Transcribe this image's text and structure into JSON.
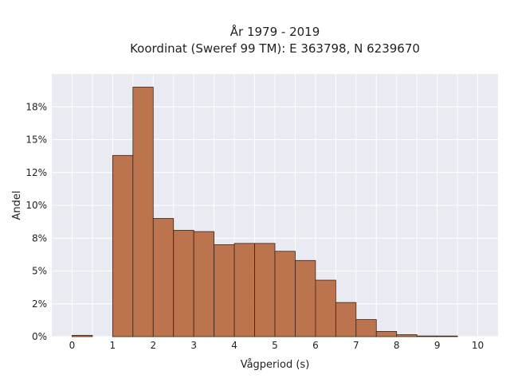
{
  "chart_data": {
    "type": "bar",
    "title_line1": "År 1979 - 2019",
    "title_line2": "Koordinat (Sweref 99 TM): E 363798, N 6239670",
    "xlabel": "Vågperiod (s)",
    "ylabel": "Andel",
    "xlim": [
      -0.5,
      10.5
    ],
    "ylim": [
      0,
      0.2
    ],
    "x_ticks": [
      0,
      1,
      2,
      3,
      4,
      5,
      6,
      7,
      8,
      9,
      10
    ],
    "y_ticks": [
      {
        "value": 0.0,
        "label": "0%"
      },
      {
        "value": 0.025,
        "label": "2%"
      },
      {
        "value": 0.05,
        "label": "5%"
      },
      {
        "value": 0.075,
        "label": "8%"
      },
      {
        "value": 0.1,
        "label": "10%"
      },
      {
        "value": 0.125,
        "label": "12%"
      },
      {
        "value": 0.15,
        "label": "15%"
      },
      {
        "value": 0.175,
        "label": "18%"
      }
    ],
    "bin_width": 0.5,
    "bin_starts": [
      0.0,
      0.5,
      1.0,
      1.5,
      2.0,
      2.5,
      3.0,
      3.5,
      4.0,
      4.5,
      5.0,
      5.5,
      6.0,
      6.5,
      7.0,
      7.5,
      8.0,
      8.5,
      9.0,
      9.5
    ],
    "values": [
      0.001,
      0.0,
      0.138,
      0.19,
      0.09,
      0.081,
      0.08,
      0.07,
      0.071,
      0.071,
      0.065,
      0.058,
      0.043,
      0.026,
      0.013,
      0.004,
      0.0015,
      0.0005,
      0.0004,
      0.0
    ],
    "bar_color": "#b86e45",
    "bar_edge_color": "#3a2418",
    "background_color": "#eaeaf2",
    "grid": true,
    "grid_color": "#ffffff"
  }
}
